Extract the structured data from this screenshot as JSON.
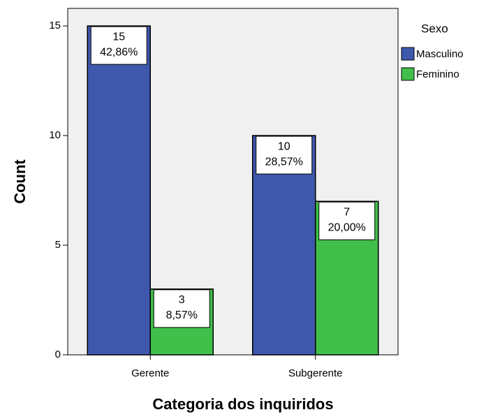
{
  "chart_data": {
    "type": "bar",
    "x_label": "Categoria dos inquiridos",
    "y_label": "Count",
    "legend_title": "Sexo",
    "legend_position": "right",
    "categories": [
      "Gerente",
      "Subgerente"
    ],
    "series": [
      {
        "name": "Masculino",
        "color": "#3e58ac",
        "values": [
          15,
          10
        ],
        "percentages": [
          42.86,
          28.57
        ],
        "percentage_labels": [
          "42,86%",
          "28,57%"
        ]
      },
      {
        "name": "Feminino",
        "color": "#40bf4a",
        "values": [
          3,
          7
        ],
        "percentages": [
          8.57,
          20.0
        ],
        "percentage_labels": [
          "8,57%",
          "20,00%"
        ]
      }
    ],
    "ylim": [
      0,
      15.8
    ],
    "yticks": [
      0,
      5,
      10,
      15
    ]
  }
}
